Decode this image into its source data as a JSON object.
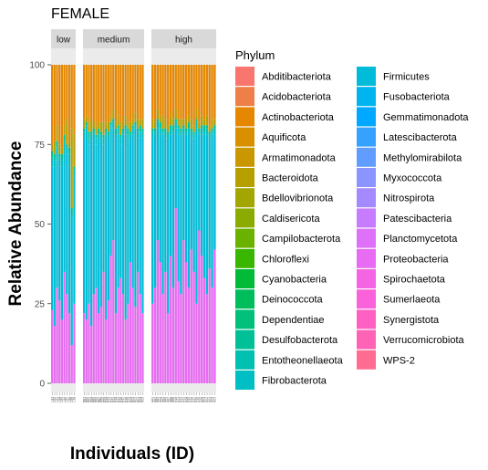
{
  "chart_data": {
    "type": "bar",
    "stacked": true,
    "title": "FEMALE",
    "xlabel": "Individuals (ID)",
    "ylabel": "Relative Abundance",
    "ylim": [
      0,
      100
    ],
    "yticks": [
      0,
      25,
      50,
      75,
      100
    ],
    "grid": false,
    "legend_title": "Phylum",
    "legend_position": "right",
    "legend_columns": 2,
    "colors": {
      "Abditibacteriota": "#F8766D",
      "Acidobacteriota": "#EF7F49",
      "Actinobacteriota": "#E58700",
      "Aquificota": "#D89000",
      "Armatimonadota": "#C99800",
      "Bacteroidota": "#B79F00",
      "Bdellovibrionota": "#A3A500",
      "Caldisericota": "#8BAB00",
      "Campilobacterota": "#6BB100",
      "Chloroflexi": "#39B600",
      "Cyanobacteria": "#00BA38",
      "Deinococcota": "#00BD5C",
      "Dependentiae": "#00C07B",
      "Desulfobacterota": "#00C097",
      "Entotheonellaeota": "#00C0AF",
      "Fibrobacterota": "#00BFC4",
      "Firmicutes": "#00BCD8",
      "Fusobacteriota": "#00B4EF",
      "Gemmatimonadota": "#00A9FF",
      "Latescibacterota": "#35A2FF",
      "Methylomirabilota": "#619CFF",
      "Myxococcota": "#8C94FF",
      "Nitrospirota": "#A58AFF",
      "Patescibacteria": "#C77CFF",
      "Planctomycetota": "#DF70F8",
      "Proteobacteria": "#E76BF3",
      "Spirochaetota": "#F564E3",
      "Sumerlaeota": "#FA62DB",
      "Synergistota": "#FF61C3",
      "Verrucomicrobiota": "#FF63B6",
      "WPS-2": "#FF6C91"
    },
    "legend": [
      "Abditibacteriota",
      "Acidobacteriota",
      "Actinobacteriota",
      "Aquificota",
      "Armatimonadota",
      "Bacteroidota",
      "Bdellovibrionota",
      "Caldisericota",
      "Campilobacterota",
      "Chloroflexi",
      "Cyanobacteria",
      "Deinococcota",
      "Dependentiae",
      "Desulfobacterota",
      "Entotheonellaeota",
      "Fibrobacterota",
      "Firmicutes",
      "Fusobacteriota",
      "Gemmatimonadota",
      "Latescibacterota",
      "Methylomirabilota",
      "Myxococcota",
      "Nitrospirota",
      "Patescibacteria",
      "Planctomycetota",
      "Proteobacteria",
      "Spirochaetota",
      "Sumerlaeota",
      "Synergistota",
      "Verrucomicrobiota",
      "WPS-2"
    ],
    "facets": [
      {
        "label": "low",
        "ids": [
          "L01",
          "L02",
          "L03",
          "L04",
          "L05",
          "L06",
          "L07",
          "L08",
          "L09",
          "L10"
        ],
        "series": [
          {
            "name": "Proteobacteria",
            "values": [
              23,
              18,
              30,
              26,
              20,
              35,
              28,
              22,
              12,
              25
            ]
          },
          {
            "name": "Firmicutes",
            "values": [
              45,
              50,
              40,
              42,
              48,
              38,
              44,
              46,
              38,
              40
            ]
          },
          {
            "name": "Fibrobacterota",
            "values": [
              3,
              2,
              4,
              3,
              2,
              3,
              2,
              4,
              3,
              2
            ]
          },
          {
            "name": "Desulfobacterota",
            "values": [
              2,
              2,
              2,
              1,
              2,
              2,
              1,
              2,
              2,
              1
            ]
          },
          {
            "name": "Bacteroidota",
            "values": [
              2,
              4,
              5,
              3,
              2,
              3,
              8,
              2,
              25,
              10
            ]
          },
          {
            "name": "Actinobacteriota",
            "values": [
              25,
              24,
              19,
              25,
              26,
              19,
              17,
              24,
              20,
              22
            ]
          }
        ]
      },
      {
        "label": "medium",
        "ids": [
          "M01",
          "M02",
          "M03",
          "M04",
          "M05",
          "M06",
          "M07",
          "M08",
          "M09",
          "M10",
          "M11",
          "M12",
          "M13",
          "M14",
          "M15",
          "M16",
          "M17",
          "M18",
          "M19",
          "M20",
          "M21",
          "M22",
          "M23",
          "M24",
          "M25"
        ],
        "series": [
          {
            "name": "Proteobacteria",
            "values": [
              22,
              20,
              25,
              18,
              28,
              30,
              22,
              24,
              35,
              20,
              26,
              40,
              45,
              22,
              30,
              33,
              28,
              20,
              25,
              38,
              30,
              24,
              35,
              28,
              22
            ]
          },
          {
            "name": "Firmicutes",
            "values": [
              55,
              60,
              50,
              58,
              50,
              45,
              55,
              52,
              40,
              58,
              50,
              40,
              35,
              55,
              48,
              42,
              50,
              58,
              52,
              38,
              48,
              56,
              42,
              50,
              55
            ]
          },
          {
            "name": "Fibrobacterota",
            "values": [
              2,
              1,
              2,
              2,
              1,
              2,
              1,
              2,
              2,
              1,
              2,
              1,
              2,
              1,
              2,
              2,
              1,
              2,
              1,
              2,
              2,
              1,
              2,
              1,
              2
            ]
          },
          {
            "name": "Desulfobacterota",
            "values": [
              1,
              1,
              2,
              1,
              1,
              1,
              2,
              1,
              1,
              1,
              1,
              1,
              1,
              2,
              1,
              1,
              1,
              1,
              2,
              1,
              1,
              1,
              1,
              2,
              1
            ]
          },
          {
            "name": "Bacteroidota",
            "values": [
              3,
              2,
              3,
              4,
              2,
              3,
              2,
              3,
              4,
              2,
              3,
              2,
              3,
              2,
              3,
              4,
              2,
              3,
              2,
              3,
              2,
              3,
              3,
              2,
              3
            ]
          },
          {
            "name": "Actinobacteriota",
            "values": [
              17,
              16,
              18,
              17,
              18,
              19,
              18,
              18,
              18,
              18,
              18,
              16,
              14,
              18,
              16,
              18,
              18,
              16,
              18,
              18,
              17,
              15,
              17,
              17,
              17
            ]
          }
        ]
      },
      {
        "label": "high",
        "ids": [
          "H01",
          "H02",
          "H03",
          "H04",
          "H05",
          "H06",
          "H07",
          "H08",
          "H09",
          "H10",
          "H11",
          "H12",
          "H13",
          "H14",
          "H15",
          "H16",
          "H17",
          "H18",
          "H19",
          "H20",
          "H21",
          "H22",
          "H23",
          "H24",
          "H25"
        ],
        "series": [
          {
            "name": "Proteobacteria",
            "values": [
              25,
              30,
              45,
              38,
              28,
              35,
              22,
              40,
              30,
              55,
              32,
              28,
              45,
              38,
              30,
              42,
              35,
              25,
              48,
              40,
              33,
              28,
              36,
              30,
              42
            ]
          },
          {
            "name": "Firmicutes",
            "values": [
              52,
              48,
              35,
              40,
              50,
              42,
              55,
              38,
              48,
              25,
              46,
              50,
              33,
              40,
              48,
              35,
              42,
              55,
              30,
              38,
              45,
              50,
              40,
              48,
              36
            ]
          },
          {
            "name": "Fibrobacterota",
            "values": [
              2,
              1,
              2,
              2,
              1,
              2,
              1,
              2,
              1,
              2,
              2,
              1,
              2,
              1,
              2,
              2,
              1,
              2,
              1,
              2,
              1,
              2,
              2,
              1,
              2
            ]
          },
          {
            "name": "Desulfobacterota",
            "values": [
              1,
              1,
              1,
              2,
              1,
              1,
              1,
              1,
              2,
              1,
              1,
              1,
              1,
              1,
              2,
              1,
              1,
              1,
              1,
              1,
              2,
              1,
              1,
              1,
              1
            ]
          },
          {
            "name": "Bacteroidota",
            "values": [
              3,
              2,
              3,
              2,
              4,
              3,
              2,
              3,
              2,
              3,
              2,
              3,
              2,
              3,
              2,
              3,
              2,
              3,
              2,
              3,
              2,
              3,
              2,
              3,
              2
            ]
          },
          {
            "name": "Actinobacteriota",
            "values": [
              17,
              18,
              14,
              16,
              16,
              17,
              19,
              16,
              17,
              14,
              17,
              17,
              17,
              17,
              16,
              17,
              19,
              14,
              18,
              16,
              17,
              16,
              19,
              17,
              17
            ]
          }
        ]
      }
    ]
  }
}
